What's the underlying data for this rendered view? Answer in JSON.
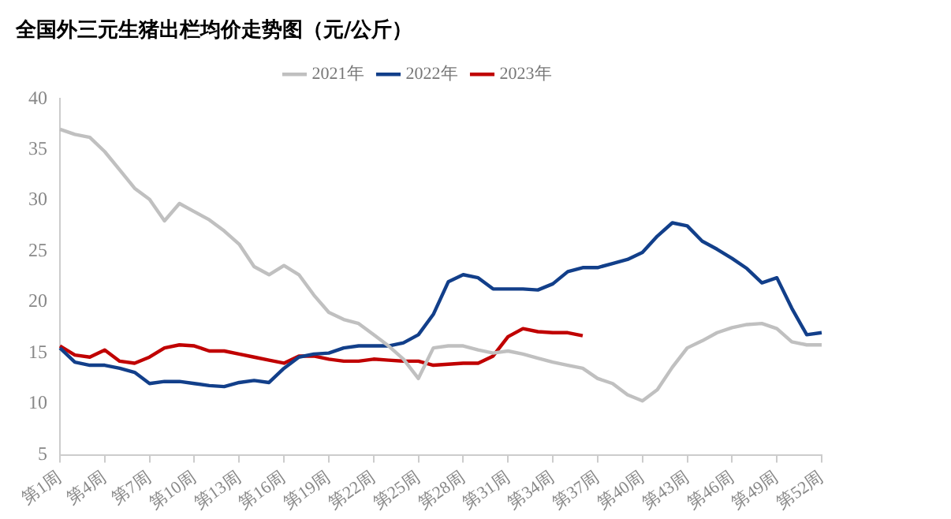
{
  "chart_data": {
    "type": "line",
    "title": "全国外三元生猪出栏均价走势图（元/公斤）",
    "categories": [
      "第1周",
      null,
      null,
      "第4周",
      null,
      null,
      "第7周",
      null,
      null,
      "第10周",
      null,
      null,
      "第13周",
      null,
      null,
      "第16周",
      null,
      null,
      "第19周",
      null,
      null,
      "第22周",
      null,
      null,
      "第25周",
      null,
      null,
      "第28周",
      null,
      null,
      "第31周",
      null,
      null,
      "第34周",
      null,
      null,
      "第37周",
      null,
      null,
      "第40周",
      null,
      null,
      "第43周",
      null,
      null,
      "第46周",
      null,
      null,
      "第49周",
      null,
      null,
      "第52周"
    ],
    "series": [
      {
        "name": "2021年",
        "color": "#c0c0c0",
        "values": [
          37.0,
          36.5,
          36.2,
          34.8,
          33.0,
          31.2,
          30.1,
          28.0,
          29.7,
          28.9,
          28.1,
          27.0,
          25.7,
          23.5,
          22.7,
          23.6,
          22.7,
          20.7,
          19.0,
          18.3,
          17.9,
          16.8,
          15.7,
          14.4,
          12.5,
          15.5,
          15.7,
          15.7,
          15.3,
          15.0,
          15.2,
          14.9,
          14.5,
          14.1,
          13.8,
          13.5,
          12.5,
          12.0,
          10.9,
          10.3,
          11.4,
          13.6,
          15.5,
          16.2,
          17.0,
          17.5,
          17.8,
          17.9,
          17.4,
          16.1,
          15.8,
          15.8
        ]
      },
      {
        "name": "2022年",
        "color": "#123f8a",
        "values": [
          15.5,
          14.1,
          13.8,
          13.8,
          13.5,
          13.1,
          12.0,
          12.2,
          12.2,
          12.0,
          11.8,
          11.7,
          12.1,
          12.3,
          12.1,
          13.5,
          14.6,
          14.9,
          15.0,
          15.5,
          15.7,
          15.7,
          15.7,
          16.0,
          16.8,
          18.8,
          22.0,
          22.7,
          22.4,
          21.3,
          21.3,
          21.3,
          21.2,
          21.8,
          23.0,
          23.4,
          23.4,
          23.8,
          24.2,
          24.9,
          26.5,
          27.8,
          27.5,
          26.0,
          25.2,
          24.3,
          23.3,
          21.9,
          22.4,
          19.4,
          16.8,
          17.0
        ]
      },
      {
        "name": "2023年",
        "color": "#c00000",
        "values": [
          15.7,
          14.8,
          14.6,
          15.3,
          14.2,
          14.0,
          14.6,
          15.5,
          15.8,
          15.7,
          15.2,
          15.2,
          14.9,
          14.6,
          14.3,
          14.0,
          14.7,
          14.7,
          14.4,
          14.2,
          14.2,
          14.4,
          14.3,
          14.2,
          14.2,
          13.8,
          13.9,
          14.0,
          14.0,
          14.7,
          16.6,
          17.4,
          17.1,
          17.0,
          17.0,
          16.7,
          null,
          null,
          null,
          null,
          null,
          null,
          null,
          null,
          null,
          null,
          null,
          null,
          null,
          null,
          null,
          null
        ]
      }
    ],
    "ylim": [
      5,
      40
    ],
    "yticks": [
      5,
      10,
      15,
      20,
      25,
      30,
      35,
      40
    ],
    "grid": false,
    "legend": "top",
    "marker": "none",
    "line_style": "solid"
  }
}
